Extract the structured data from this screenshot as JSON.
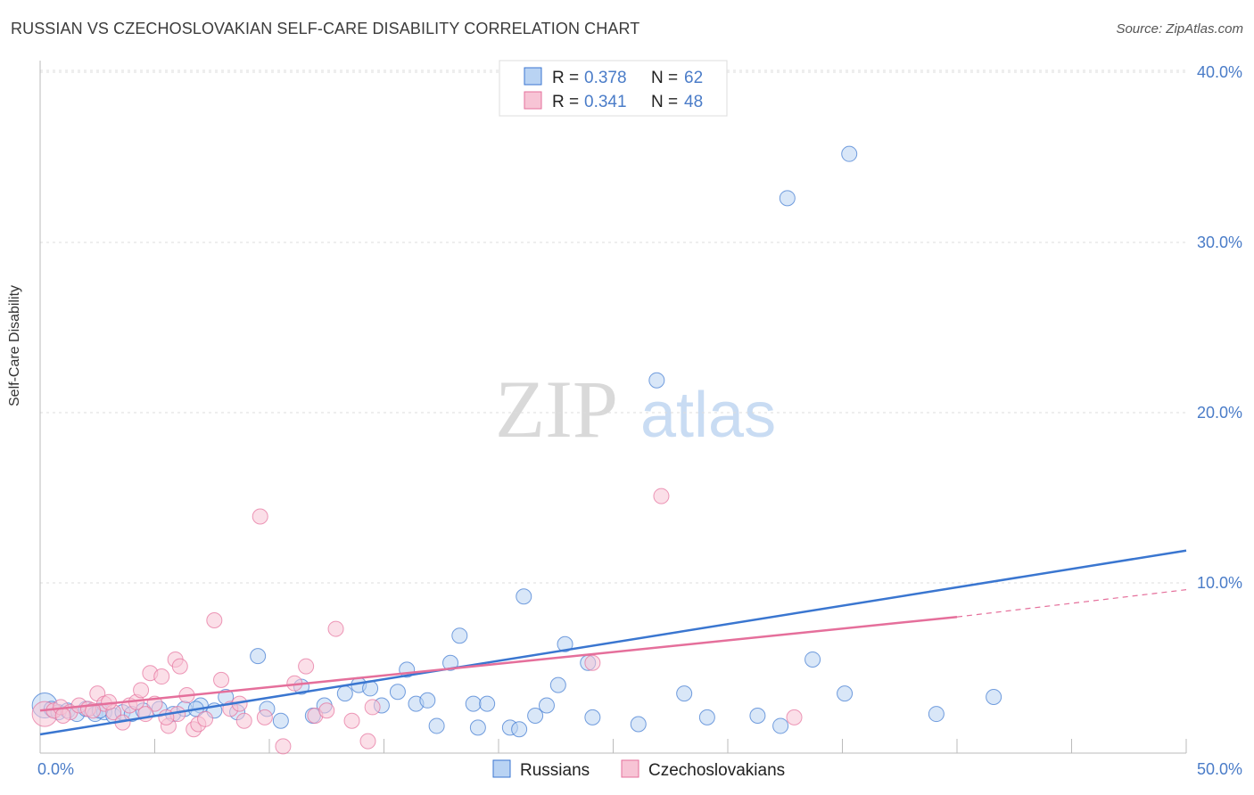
{
  "header": {
    "title": "RUSSIAN VS CZECHOSLOVAKIAN SELF-CARE DISABILITY CORRELATION CHART",
    "source": "Source: ZipAtlas.com"
  },
  "watermark": {
    "zip": "ZIP",
    "atlas": "atlas"
  },
  "colors": {
    "blue": "#3a76d0",
    "blue_fill": "#b9d3f3",
    "pink": "#e56f9b",
    "pink_fill": "#f7c4d5",
    "grid": "#dddddd",
    "axis_label": "#4a7cc8"
  },
  "chart_data": {
    "type": "scatter",
    "title": "RUSSIAN VS CZECHOSLOVAKIAN SELF-CARE DISABILITY CORRELATION CHART",
    "xlabel": "",
    "ylabel": "Self-Care Disability",
    "xlim": [
      0,
      50
    ],
    "ylim": [
      0,
      41
    ],
    "x_tick_labels": [
      {
        "value": 0,
        "label": "0.0%"
      },
      {
        "value": 50,
        "label": "50.0%"
      }
    ],
    "y_tick_labels": [
      {
        "value": 10,
        "label": "10.0%"
      },
      {
        "value": 20,
        "label": "20.0%"
      },
      {
        "value": 30,
        "label": "30.0%"
      },
      {
        "value": 40,
        "label": "40.0%"
      }
    ],
    "legend": {
      "position": "top-center",
      "entries": [
        {
          "r_label": "R =",
          "r_value": "0.378",
          "n_label": "N =",
          "n_value": "62"
        },
        {
          "r_label": "R =",
          "r_value": "0.341",
          "n_label": "N =",
          "n_value": "48"
        }
      ]
    },
    "series": [
      {
        "name": "Russians",
        "color": "#3a76d0",
        "trend": {
          "x": [
            0,
            50
          ],
          "y": [
            1.1,
            11.9
          ]
        },
        "points": [
          {
            "x": 0.2,
            "y": 2.8
          },
          {
            "x": 0.5,
            "y": 2.6
          },
          {
            "x": 0.8,
            "y": 2.4
          },
          {
            "x": 1.2,
            "y": 2.5
          },
          {
            "x": 1.6,
            "y": 2.3
          },
          {
            "x": 2.0,
            "y": 2.6
          },
          {
            "x": 2.4,
            "y": 2.3
          },
          {
            "x": 2.8,
            "y": 2.4
          },
          {
            "x": 3.2,
            "y": 2.2
          },
          {
            "x": 3.6,
            "y": 2.4
          },
          {
            "x": 4.0,
            "y": 2.3
          },
          {
            "x": 4.5,
            "y": 2.5
          },
          {
            "x": 5.2,
            "y": 2.6
          },
          {
            "x": 5.8,
            "y": 2.3
          },
          {
            "x": 6.3,
            "y": 2.6
          },
          {
            "x": 7.0,
            "y": 2.8
          },
          {
            "x": 7.6,
            "y": 2.5
          },
          {
            "x": 8.1,
            "y": 3.3
          },
          {
            "x": 8.6,
            "y": 2.4
          },
          {
            "x": 9.5,
            "y": 5.7
          },
          {
            "x": 10.5,
            "y": 1.9
          },
          {
            "x": 11.4,
            "y": 3.9
          },
          {
            "x": 11.9,
            "y": 2.2
          },
          {
            "x": 12.4,
            "y": 2.8
          },
          {
            "x": 13.3,
            "y": 3.5
          },
          {
            "x": 13.9,
            "y": 4.0
          },
          {
            "x": 14.4,
            "y": 3.8
          },
          {
            "x": 14.9,
            "y": 2.8
          },
          {
            "x": 15.6,
            "y": 3.6
          },
          {
            "x": 16.0,
            "y": 4.9
          },
          {
            "x": 16.4,
            "y": 2.9
          },
          {
            "x": 16.9,
            "y": 3.1
          },
          {
            "x": 17.3,
            "y": 1.6
          },
          {
            "x": 17.9,
            "y": 5.3
          },
          {
            "x": 18.3,
            "y": 6.9
          },
          {
            "x": 18.9,
            "y": 2.9
          },
          {
            "x": 19.1,
            "y": 1.5
          },
          {
            "x": 19.5,
            "y": 2.9
          },
          {
            "x": 20.5,
            "y": 1.5
          },
          {
            "x": 20.9,
            "y": 1.4
          },
          {
            "x": 21.1,
            "y": 9.2
          },
          {
            "x": 21.6,
            "y": 2.2
          },
          {
            "x": 22.1,
            "y": 2.8
          },
          {
            "x": 22.6,
            "y": 4.0
          },
          {
            "x": 22.9,
            "y": 6.4
          },
          {
            "x": 23.9,
            "y": 5.3
          },
          {
            "x": 24.1,
            "y": 2.1
          },
          {
            "x": 26.1,
            "y": 1.7
          },
          {
            "x": 26.9,
            "y": 21.9
          },
          {
            "x": 28.1,
            "y": 3.5
          },
          {
            "x": 29.1,
            "y": 2.1
          },
          {
            "x": 31.3,
            "y": 2.2
          },
          {
            "x": 32.3,
            "y": 1.6
          },
          {
            "x": 32.6,
            "y": 32.6
          },
          {
            "x": 33.7,
            "y": 5.5
          },
          {
            "x": 35.1,
            "y": 3.5
          },
          {
            "x": 35.3,
            "y": 35.2
          },
          {
            "x": 39.1,
            "y": 2.3
          },
          {
            "x": 41.6,
            "y": 3.3
          },
          {
            "x": 2.6,
            "y": 2.5
          },
          {
            "x": 6.8,
            "y": 2.6
          },
          {
            "x": 9.9,
            "y": 2.6
          }
        ]
      },
      {
        "name": "Czechoslovakians",
        "color": "#e56f9b",
        "trend": {
          "x": [
            0,
            40
          ],
          "y": [
            2.5,
            8.0
          ]
        },
        "trend_ext": {
          "x": [
            40,
            50
          ],
          "y": [
            8.0,
            9.6
          ]
        },
        "points": [
          {
            "x": 0.2,
            "y": 2.3
          },
          {
            "x": 0.6,
            "y": 2.5
          },
          {
            "x": 0.9,
            "y": 2.7
          },
          {
            "x": 1.3,
            "y": 2.4
          },
          {
            "x": 1.7,
            "y": 2.8
          },
          {
            "x": 2.1,
            "y": 2.6
          },
          {
            "x": 2.5,
            "y": 3.5
          },
          {
            "x": 2.8,
            "y": 2.9
          },
          {
            "x": 3.2,
            "y": 2.4
          },
          {
            "x": 3.6,
            "y": 1.8
          },
          {
            "x": 3.9,
            "y": 2.8
          },
          {
            "x": 4.2,
            "y": 3.0
          },
          {
            "x": 4.4,
            "y": 3.7
          },
          {
            "x": 4.8,
            "y": 4.7
          },
          {
            "x": 5.0,
            "y": 2.9
          },
          {
            "x": 5.3,
            "y": 4.5
          },
          {
            "x": 5.6,
            "y": 1.6
          },
          {
            "x": 5.9,
            "y": 5.5
          },
          {
            "x": 6.1,
            "y": 5.1
          },
          {
            "x": 6.4,
            "y": 3.4
          },
          {
            "x": 6.7,
            "y": 1.4
          },
          {
            "x": 6.9,
            "y": 1.7
          },
          {
            "x": 7.2,
            "y": 2.0
          },
          {
            "x": 7.6,
            "y": 7.8
          },
          {
            "x": 7.9,
            "y": 4.3
          },
          {
            "x": 8.3,
            "y": 2.6
          },
          {
            "x": 8.7,
            "y": 2.9
          },
          {
            "x": 9.6,
            "y": 13.9
          },
          {
            "x": 9.8,
            "y": 2.1
          },
          {
            "x": 10.6,
            "y": 0.4
          },
          {
            "x": 11.1,
            "y": 4.1
          },
          {
            "x": 11.6,
            "y": 5.1
          },
          {
            "x": 12.0,
            "y": 2.2
          },
          {
            "x": 12.9,
            "y": 7.3
          },
          {
            "x": 13.6,
            "y": 1.9
          },
          {
            "x": 14.3,
            "y": 0.7
          },
          {
            "x": 14.5,
            "y": 2.7
          },
          {
            "x": 24.1,
            "y": 5.3
          },
          {
            "x": 27.1,
            "y": 15.1
          },
          {
            "x": 32.9,
            "y": 2.1
          },
          {
            "x": 3.0,
            "y": 3.0
          },
          {
            "x": 1.0,
            "y": 2.2
          },
          {
            "x": 2.3,
            "y": 2.5
          },
          {
            "x": 6.0,
            "y": 2.3
          },
          {
            "x": 5.5,
            "y": 2.1
          },
          {
            "x": 4.6,
            "y": 2.3
          },
          {
            "x": 8.9,
            "y": 1.9
          },
          {
            "x": 12.5,
            "y": 2.5
          }
        ]
      }
    ]
  },
  "bottom_legend": {
    "items": [
      {
        "label": "Russians"
      },
      {
        "label": "Czechoslovakians"
      }
    ]
  }
}
